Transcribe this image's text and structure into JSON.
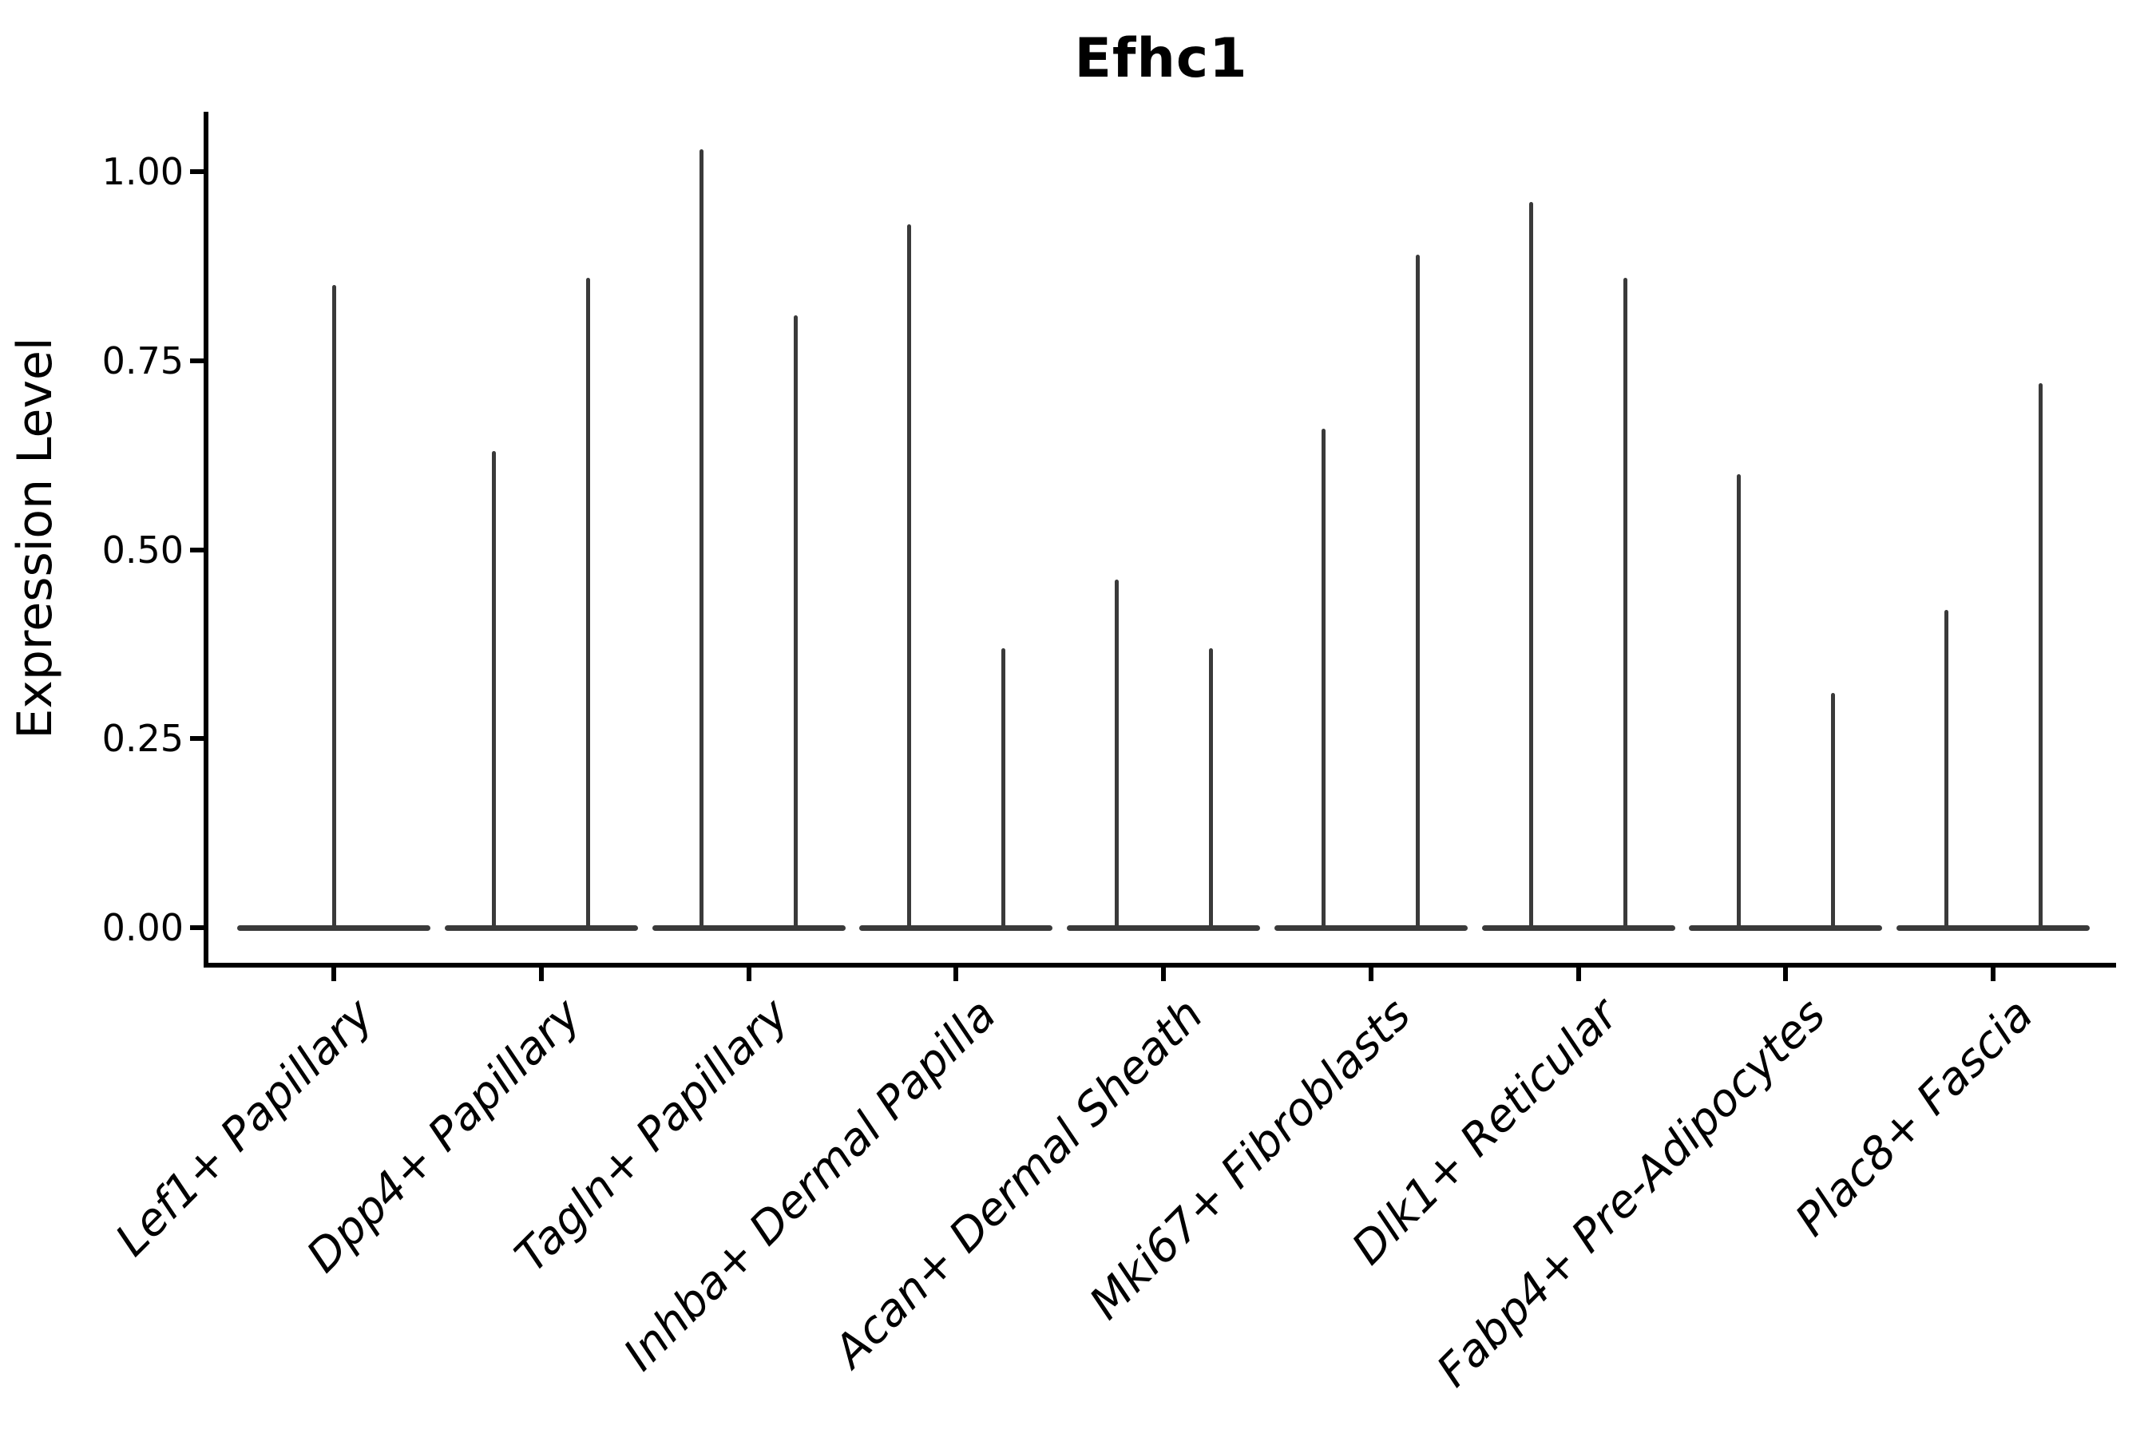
{
  "figure": {
    "background": "#ffffff",
    "title": "Efhc1",
    "colors": {
      "violin": "#3a3a3a",
      "axis": "#000000",
      "text": "#000000"
    }
  },
  "chart_data": {
    "type": "violin",
    "title": "Efhc1",
    "ylabel": "Expression Level",
    "ylim": [
      0,
      1.08
    ],
    "yticks": [
      1.0,
      0.75,
      0.5,
      0.25,
      0.0
    ],
    "ytick_labels": [
      "1.00",
      "0.75",
      "0.50",
      "0.25",
      "0.00"
    ],
    "grid": false,
    "legend": false,
    "xtick_rotation_degrees": 45,
    "categories": [
      "Lef1+ Papillary",
      "Dpp4+ Papillary",
      "Tagln+ Papillary",
      "Inhba+ Dermal Papilla",
      "Acan+ Dermal Sheath",
      "Mki67+ Fibroblasts",
      "Dlk1+ Reticular",
      "Fabp4+ Pre-Adipocytes",
      "Plac8+ Fascia"
    ],
    "violins": [
      {
        "category": "Lef1+ Papillary",
        "spike_max_values": [
          0.85
        ]
      },
      {
        "category": "Dpp4+ Papillary",
        "spike_max_values": [
          0.63,
          0.86
        ]
      },
      {
        "category": "Tagln+ Papillary",
        "spike_max_values": [
          1.03,
          0.81
        ]
      },
      {
        "category": "Inhba+ Dermal Papilla",
        "spike_max_values": [
          0.93,
          0.37
        ]
      },
      {
        "category": "Acan+ Dermal Sheath",
        "spike_max_values": [
          0.46,
          0.37
        ]
      },
      {
        "category": "Mki67+ Fibroblasts",
        "spike_max_values": [
          0.66,
          0.89
        ]
      },
      {
        "category": "Dlk1+ Reticular",
        "spike_max_values": [
          0.96,
          0.86
        ]
      },
      {
        "category": "Fabp4+ Pre-Adipocytes",
        "spike_max_values": [
          0.6,
          0.31
        ]
      },
      {
        "category": "Plac8+ Fascia",
        "spike_max_values": [
          0.42,
          0.72
        ]
      }
    ],
    "note_visual": "Violins are collapsed flat at expression 0 with thin vertical spikes reaching each group's maximum value"
  }
}
